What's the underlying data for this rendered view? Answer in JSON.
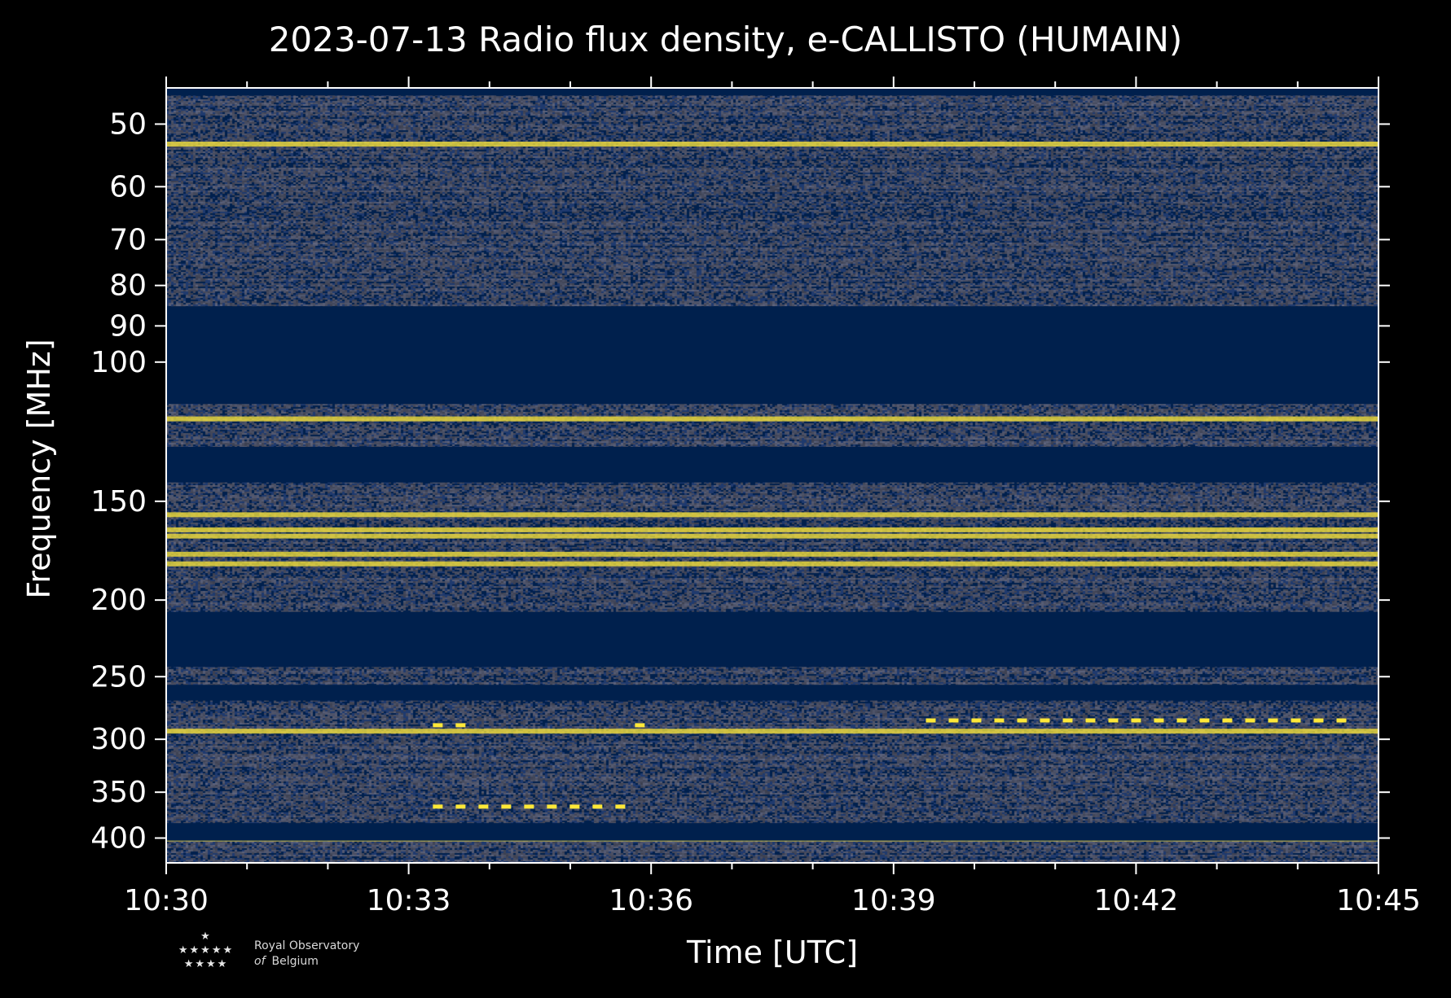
{
  "chart_data": {
    "type": "heatmap",
    "title": "2023-07-13 Radio flux density, e-CALLISTO (HUMAIN)",
    "xlabel": "Time [UTC]",
    "ylabel": "Frequency [MHz]",
    "x_ticks": [
      "10:30",
      "10:33",
      "10:36",
      "10:39",
      "10:42",
      "10:45"
    ],
    "x_range_minutes_after_10_30": [
      0,
      15
    ],
    "y_ticks": [
      50,
      60,
      70,
      80,
      90,
      100,
      150,
      200,
      250,
      300,
      350,
      400
    ],
    "y_range_mhz": [
      45,
      430
    ],
    "y_scale": "log (reversed, low frequency at top)",
    "colormap": "cividis",
    "colors": {
      "background": "#000000",
      "low": "#00204d",
      "mid": "#7c7b78",
      "high": "#fee838",
      "axis": "#ffffff"
    },
    "saturated_bands_mhz": [
      [
        45,
        46
      ],
      [
        85,
        113
      ],
      [
        128,
        142
      ],
      [
        207,
        243
      ],
      [
        256,
        268
      ],
      [
        383,
        403
      ]
    ],
    "bright_emission_lines_mhz": [
      53,
      118,
      156,
      163,
      166,
      175,
      180,
      293,
      401
    ],
    "intermittent_bursts": [
      {
        "start_min": 9.4,
        "end_min": 14.5,
        "freq_mhz": 284
      },
      {
        "start_min": 3.3,
        "end_min": 3.6,
        "freq_mhz": 288
      },
      {
        "start_min": 5.8,
        "end_min": 5.9,
        "freq_mhz": 288
      },
      {
        "start_min": 3.3,
        "end_min": 5.7,
        "freq_mhz": 365
      }
    ]
  },
  "logo": {
    "stars_top": "★",
    "stars_middle": "★★★★★",
    "stars_bottom": "★★★★",
    "line1": "Royal Observatory",
    "line2_prefix": "of",
    "line2_rest": "Belgium"
  }
}
